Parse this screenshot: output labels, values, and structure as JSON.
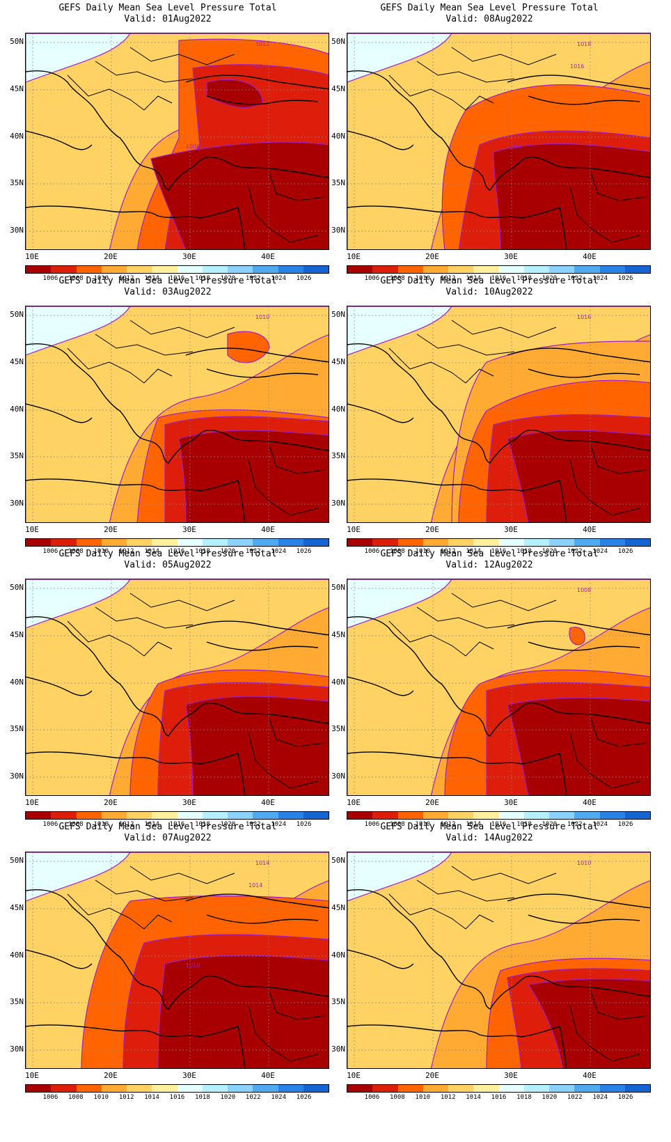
{
  "panels": [
    {
      "title": "GEFS Daily Mean Sea Level Pressure Total",
      "valid": "Valid: 01Aug2022",
      "labels": [
        "1012",
        "1008",
        "1008"
      ]
    },
    {
      "title": "GEFS Daily Mean Sea Level Pressure Total",
      "valid": "Valid: 08Aug2022",
      "labels": [
        "1018",
        "1016",
        "1008"
      ]
    },
    {
      "title": "GEFS Daily Mean Sea Level Pressure Total",
      "valid": "Valid: 03Aug2022",
      "labels": [
        "1010"
      ]
    },
    {
      "title": "GEFS Daily Mean Sea Level Pressure Total",
      "valid": "Valid: 10Aug2022",
      "labels": [
        "1016"
      ]
    },
    {
      "title": "GEFS Daily Mean Sea Level Pressure Total",
      "valid": "Valid: 05Aug2022",
      "labels": []
    },
    {
      "title": "GEFS Daily Mean Sea Level Pressure Total",
      "valid": "Valid: 12Aug2022",
      "labels": [
        "1008"
      ]
    },
    {
      "title": "GEFS Daily Mean Sea Level Pressure Total",
      "valid": "Valid: 07Aug2022",
      "labels": [
        "1014",
        "1014",
        "1010"
      ]
    },
    {
      "title": "GEFS Daily Mean Sea Level Pressure Total",
      "valid": "Valid: 14Aug2022",
      "labels": [
        "1010"
      ]
    }
  ],
  "lat_labels": [
    "50N",
    "45N",
    "40N",
    "35N",
    "30N"
  ],
  "lon_labels": [
    "10E",
    "20E",
    "30E",
    "40E"
  ],
  "colorbar": {
    "levels": [
      "1006",
      "1008",
      "1010",
      "1012",
      "1014",
      "1016",
      "1018",
      "1020",
      "1022",
      "1024",
      "1026"
    ],
    "colors": [
      "#a80000",
      "#dc1e0a",
      "#ff6400",
      "#ffaa32",
      "#ffd264",
      "#fff0a0",
      "#e6ffff",
      "#b4f0ff",
      "#8cd2ff",
      "#50aaf0",
      "#2882e6",
      "#1464d2"
    ]
  },
  "map_layers": {
    "isobar_color": "#a01ec8",
    "coast_color": "#000000"
  }
}
